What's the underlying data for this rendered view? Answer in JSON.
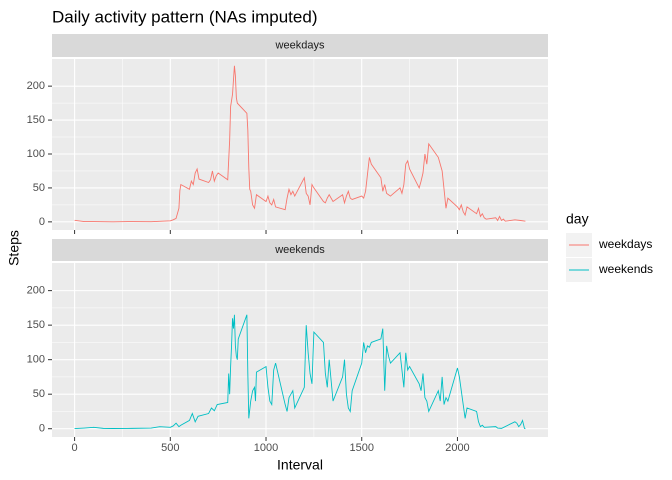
{
  "chart_data": {
    "type": "line",
    "title": "Daily activity pattern (NAs imputed)",
    "x_label": "Interval",
    "y_label": "Steps",
    "legend_title": "day",
    "legend": "right",
    "grid": true,
    "facet": "series",
    "xlim": [
      -118,
      2473
    ],
    "xticks": [
      0,
      500,
      1000,
      1500,
      2000
    ],
    "ylim": [
      -12,
      240
    ],
    "yticks": [
      0,
      50,
      100,
      150,
      200
    ],
    "series": [
      {
        "name": "weekdays",
        "color": "#F8766D",
        "x": [
          0,
          50,
          100,
          200,
          300,
          400,
          500,
          515,
          530,
          545,
          550,
          555,
          600,
          610,
          620,
          630,
          640,
          650,
          700,
          710,
          720,
          730,
          740,
          750,
          800,
          810,
          815,
          825,
          835,
          840,
          845,
          850,
          900,
          905,
          910,
          915,
          920,
          930,
          940,
          950,
          1000,
          1010,
          1020,
          1030,
          1040,
          1050,
          1100,
          1110,
          1120,
          1130,
          1140,
          1150,
          1200,
          1210,
          1220,
          1230,
          1240,
          1250,
          1300,
          1310,
          1320,
          1330,
          1340,
          1350,
          1400,
          1410,
          1420,
          1430,
          1440,
          1450,
          1500,
          1510,
          1520,
          1530,
          1540,
          1550,
          1600,
          1610,
          1620,
          1630,
          1640,
          1650,
          1700,
          1710,
          1720,
          1730,
          1740,
          1750,
          1800,
          1810,
          1820,
          1830,
          1840,
          1850,
          1900,
          1910,
          1920,
          1930,
          1940,
          1950,
          2000,
          2010,
          2020,
          2030,
          2040,
          2050,
          2100,
          2110,
          2120,
          2130,
          2140,
          2150,
          2200,
          2210,
          2220,
          2230,
          2240,
          2250,
          2300,
          2330,
          2355
        ],
        "values": [
          2.3,
          0.5,
          0.4,
          0.1,
          0.5,
          0.3,
          1.5,
          3,
          5,
          20,
          46,
          55,
          48,
          60,
          55,
          72,
          78,
          63,
          58,
          62,
          75,
          60,
          68,
          72,
          62,
          120,
          170,
          188,
          230,
          215,
          183,
          175,
          160,
          135,
          80,
          48,
          45,
          25,
          20,
          40,
          30,
          38,
          28,
          25,
          33,
          22,
          18,
          35,
          48,
          40,
          45,
          38,
          65,
          42,
          38,
          25,
          55,
          50,
          30,
          28,
          35,
          40,
          35,
          30,
          40,
          28,
          38,
          45,
          35,
          33,
          38,
          35,
          45,
          70,
          95,
          85,
          65,
          45,
          55,
          42,
          40,
          38,
          50,
          42,
          55,
          85,
          90,
          78,
          50,
          60,
          72,
          100,
          85,
          115,
          95,
          85,
          75,
          48,
          20,
          35,
          22,
          18,
          25,
          15,
          10,
          22,
          12,
          20,
          8,
          12,
          6,
          4,
          6,
          2,
          8,
          2,
          4,
          1,
          3,
          2,
          1
        ]
      },
      {
        "name": "weekends",
        "color": "#00BFC4",
        "x": [
          0,
          50,
          100,
          150,
          200,
          300,
          400,
          445,
          500,
          515,
          530,
          545,
          555,
          600,
          615,
          630,
          645,
          700,
          715,
          730,
          745,
          800,
          805,
          810,
          815,
          820,
          825,
          830,
          835,
          840,
          845,
          850,
          855,
          900,
          905,
          910,
          920,
          930,
          940,
          945,
          950,
          1000,
          1010,
          1020,
          1030,
          1040,
          1050,
          1100,
          1110,
          1120,
          1130,
          1140,
          1150,
          1200,
          1210,
          1215,
          1220,
          1230,
          1240,
          1250,
          1300,
          1310,
          1320,
          1330,
          1340,
          1350,
          1400,
          1410,
          1420,
          1430,
          1440,
          1450,
          1500,
          1510,
          1520,
          1530,
          1540,
          1550,
          1600,
          1610,
          1620,
          1630,
          1640,
          1650,
          1700,
          1710,
          1720,
          1730,
          1740,
          1750,
          1800,
          1810,
          1820,
          1830,
          1840,
          1850,
          1900,
          1910,
          1920,
          1930,
          1940,
          1950,
          2000,
          2010,
          2020,
          2030,
          2040,
          2050,
          2100,
          2110,
          2120,
          2130,
          2140,
          2200,
          2210,
          2230,
          2300,
          2310,
          2320,
          2330,
          2340,
          2350,
          2355
        ],
        "values": [
          0.2,
          1,
          2,
          0.5,
          0.3,
          0.5,
          1,
          3,
          2,
          4,
          8,
          3,
          5,
          12,
          22,
          10,
          18,
          22,
          30,
          26,
          35,
          38,
          80,
          50,
          90,
          120,
          160,
          145,
          165,
          120,
          105,
          100,
          130,
          165,
          80,
          15,
          40,
          55,
          60,
          40,
          82,
          90,
          60,
          40,
          35,
          85,
          95,
          35,
          25,
          45,
          50,
          55,
          30,
          60,
          150,
          130,
          110,
          80,
          65,
          140,
          125,
          80,
          60,
          100,
          70,
          40,
          75,
          100,
          50,
          30,
          25,
          55,
          95,
          125,
          110,
          120,
          118,
          125,
          130,
          145,
          55,
          120,
          105,
          95,
          110,
          85,
          60,
          110,
          85,
          90,
          65,
          55,
          80,
          45,
          40,
          25,
          55,
          40,
          75,
          35,
          45,
          40,
          88,
          75,
          55,
          35,
          15,
          30,
          25,
          10,
          3,
          5,
          2,
          3,
          1,
          0.5,
          10,
          8,
          3,
          6,
          12,
          0.5,
          0
        ]
      }
    ]
  }
}
